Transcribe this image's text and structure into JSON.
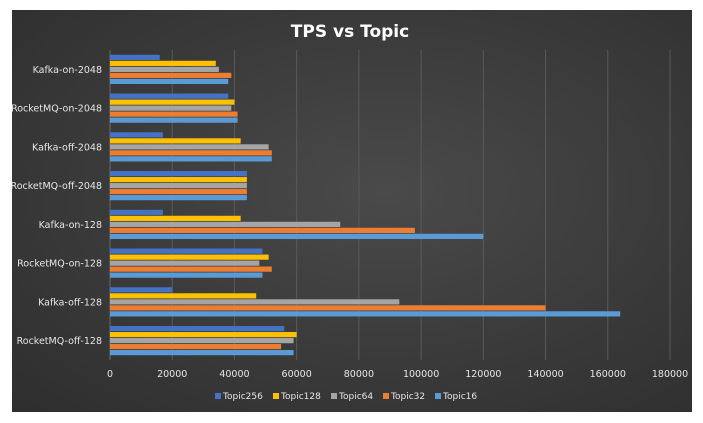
{
  "chart_data": {
    "type": "bar",
    "orientation": "horizontal",
    "title": "TPS vs Topic",
    "xlabel": "",
    "ylabel": "",
    "xlim": [
      0,
      180000
    ],
    "x_ticks": [
      "0",
      "20000",
      "40000",
      "60000",
      "80000",
      "100000",
      "120000",
      "140000",
      "160000",
      "180000"
    ],
    "x_tick_values": [
      0,
      20000,
      40000,
      60000,
      80000,
      100000,
      120000,
      140000,
      160000,
      180000
    ],
    "grid": true,
    "legend_position": "bottom",
    "categories": [
      "Kafka-on-2048",
      "RocketMQ-on-2048",
      "Kafka-off-2048",
      "RocketMQ-off-2048",
      "Kafka-on-128",
      "RocketMQ-on-128",
      "Kafka-off-128",
      "RocketMQ-off-128"
    ],
    "series": [
      {
        "name": "Topic256",
        "color": "#4472C4",
        "values": [
          16000,
          38000,
          17000,
          44000,
          17000,
          49000,
          20000,
          56000
        ]
      },
      {
        "name": "Topic128",
        "color": "#FFC000",
        "values": [
          34000,
          40000,
          42000,
          44000,
          42000,
          51000,
          47000,
          60000
        ]
      },
      {
        "name": "Topic64",
        "color": "#A5A5A5",
        "values": [
          35000,
          39000,
          51000,
          44000,
          74000,
          48000,
          93000,
          59000
        ]
      },
      {
        "name": "Topic32",
        "color": "#ED7D31",
        "values": [
          39000,
          41000,
          52000,
          44000,
          98000,
          52000,
          140000,
          55000
        ]
      },
      {
        "name": "Topic16",
        "color": "#5B9BD5",
        "values": [
          38000,
          41000,
          52000,
          44000,
          120000,
          49000,
          164000,
          59000
        ]
      }
    ]
  }
}
